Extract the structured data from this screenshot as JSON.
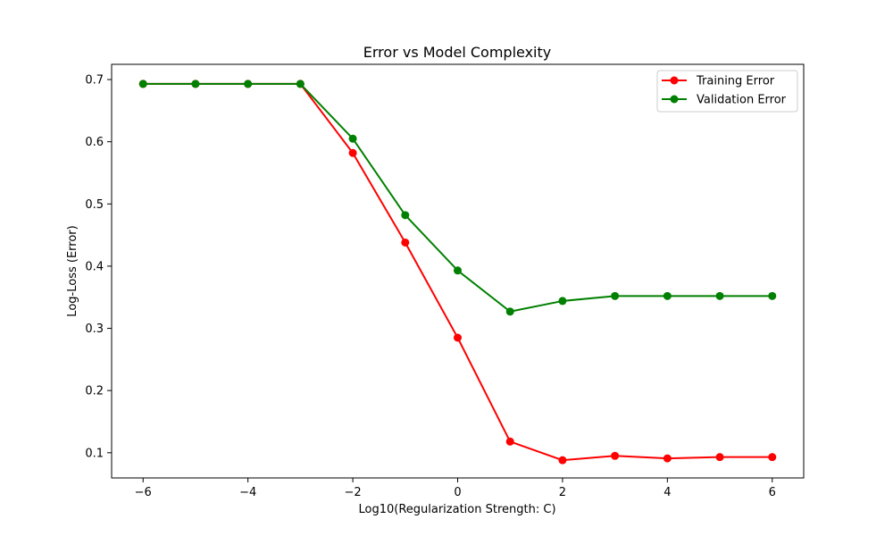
{
  "chart_data": {
    "type": "line",
    "title": "Error vs Model Complexity",
    "xlabel": "Log10(Regularization Strength: C)",
    "ylabel": "Log-Loss (Error)",
    "x": [
      -6,
      -5,
      -4,
      -3,
      -2,
      -1,
      0,
      1,
      2,
      3,
      4,
      5,
      6
    ],
    "xlim": [
      -6.6,
      6.6
    ],
    "ylim": [
      0.0595,
      0.7245
    ],
    "xticks": [
      -6,
      -4,
      -2,
      0,
      2,
      4,
      6
    ],
    "xtick_labels": [
      "−6",
      "−4",
      "−2",
      "0",
      "2",
      "4",
      "6"
    ],
    "yticks": [
      0.1,
      0.2,
      0.3,
      0.4,
      0.5,
      0.6,
      0.7
    ],
    "ytick_labels": [
      "0.1",
      "0.2",
      "0.3",
      "0.4",
      "0.5",
      "0.6",
      "0.7"
    ],
    "grid": false,
    "legend_position": "top-right",
    "series": [
      {
        "name": "Training Error",
        "color": "#ff0000",
        "marker": "circle",
        "values": [
          0.693,
          0.693,
          0.693,
          0.693,
          0.582,
          0.438,
          0.285,
          0.118,
          0.088,
          0.095,
          0.091,
          0.093,
          0.093
        ]
      },
      {
        "name": "Validation Error",
        "color": "#008000",
        "marker": "circle",
        "values": [
          0.693,
          0.693,
          0.693,
          0.693,
          0.605,
          0.482,
          0.393,
          0.327,
          0.344,
          0.352,
          0.352,
          0.352,
          0.352
        ]
      }
    ]
  }
}
